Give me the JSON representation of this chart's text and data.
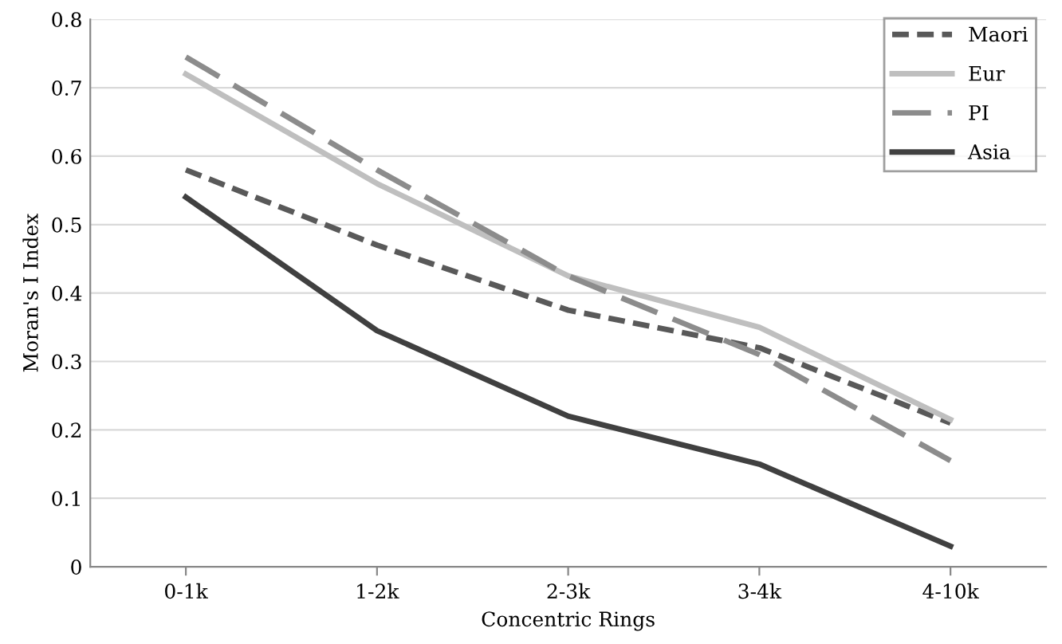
{
  "chart_data": {
    "type": "line",
    "xlabel": "Concentric Rings",
    "ylabel": "Moran's I Index",
    "categories": [
      "0-1k",
      "1-2k",
      "2-3k",
      "3-4k",
      "4-10k"
    ],
    "series": [
      {
        "name": "Maori",
        "color": "#595959",
        "line_style": "dotted",
        "values": [
          0.58,
          0.47,
          0.375,
          0.32,
          0.21
        ]
      },
      {
        "name": "Eur",
        "color": "#bfbfbf",
        "line_style": "solid",
        "values": [
          0.72,
          0.56,
          0.425,
          0.35,
          0.215
        ]
      },
      {
        "name": "PI",
        "color": "#8c8c8c",
        "line_style": "dashed",
        "values": [
          0.745,
          0.58,
          0.425,
          0.31,
          0.155
        ]
      },
      {
        "name": "Asia",
        "color": "#404040",
        "line_style": "solid",
        "values": [
          0.54,
          0.345,
          0.22,
          0.15,
          0.03
        ]
      }
    ],
    "ylim": [
      0,
      0.8
    ],
    "yticks": [
      0,
      0.1,
      0.2,
      0.3,
      0.4,
      0.5,
      0.6,
      0.7,
      0.8
    ],
    "grid": "y",
    "legend": "top right",
    "marker": "none"
  }
}
